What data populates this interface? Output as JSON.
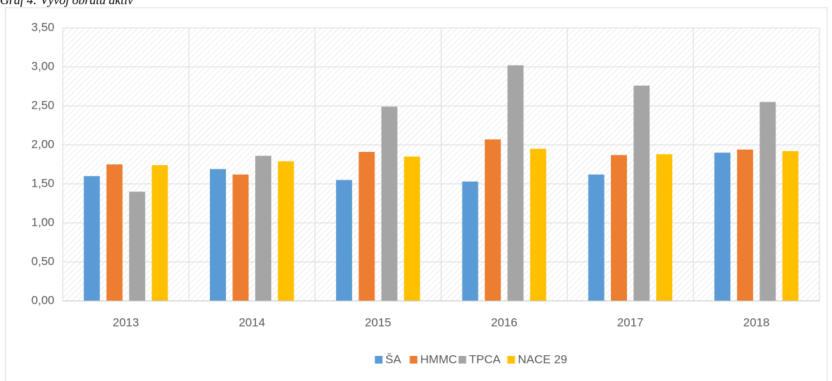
{
  "chart_data": {
    "type": "bar",
    "title": "Graf 4: Vývoj obratu aktiv",
    "categories": [
      "2013",
      "2014",
      "2015",
      "2016",
      "2017",
      "2018"
    ],
    "series": [
      {
        "name": "ŠA",
        "color": "#5b9bd5",
        "values": [
          1.6,
          1.69,
          1.55,
          1.53,
          1.62,
          1.9
        ]
      },
      {
        "name": "HMMC",
        "color": "#ed7d31",
        "values": [
          1.75,
          1.62,
          1.91,
          2.07,
          1.87,
          1.94
        ]
      },
      {
        "name": "TPCA",
        "color": "#a5a5a5",
        "values": [
          1.4,
          1.86,
          2.49,
          3.02,
          2.76,
          2.55
        ]
      },
      {
        "name": "NACE 29",
        "color": "#ffc000",
        "values": [
          1.74,
          1.79,
          1.85,
          1.95,
          1.88,
          1.92
        ]
      }
    ],
    "ylim": [
      0,
      3.5
    ],
    "yticks": [
      {
        "value": 0,
        "label": "0,00"
      },
      {
        "value": 0.5,
        "label": "0,50"
      },
      {
        "value": 1,
        "label": "1,00"
      },
      {
        "value": 1.5,
        "label": "1,50"
      },
      {
        "value": 2,
        "label": "2,00"
      },
      {
        "value": 2.5,
        "label": "2,50"
      },
      {
        "value": 3,
        "label": "3,00"
      },
      {
        "value": 3.5,
        "label": "3,50"
      }
    ],
    "grid": true,
    "legend": "bottom"
  }
}
